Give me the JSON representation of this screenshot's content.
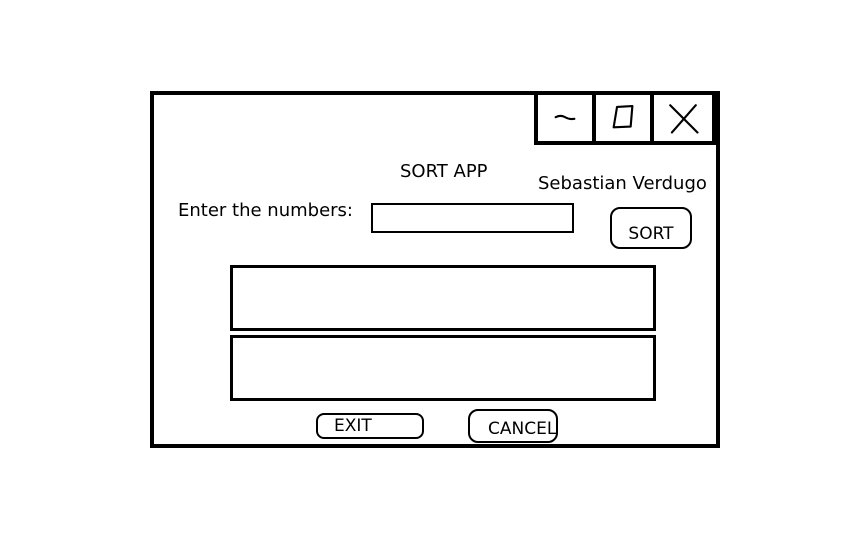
{
  "window": {
    "title": "SORT APP",
    "author": "Sebastian Verdugo"
  },
  "titlebar": {
    "minimize_icon": "minimize-icon",
    "maximize_icon": "maximize-icon",
    "close_icon": "close-icon"
  },
  "form": {
    "prompt_label": "Enter the numbers:",
    "numbers_value": "",
    "sort_label": "SORT"
  },
  "output": {
    "box1_text": "",
    "box2_text": ""
  },
  "footer": {
    "exit_label": "EXIT",
    "cancel_label": "CANCEL"
  }
}
